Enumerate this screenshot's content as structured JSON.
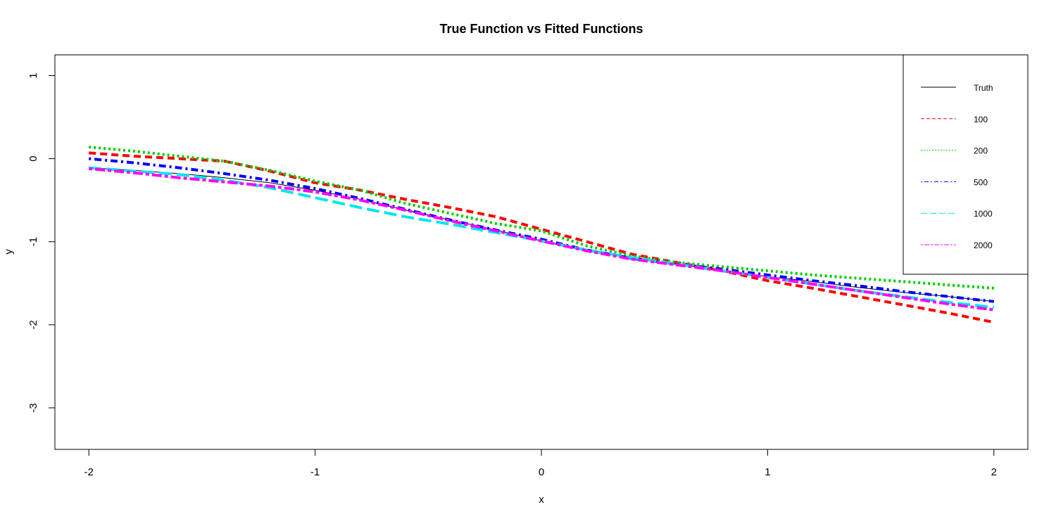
{
  "chart_data": {
    "type": "line",
    "title": "True Function vs Fitted Functions",
    "xlabel": "x",
    "ylabel": "y",
    "xlim": [
      -2.15,
      2.15
    ],
    "ylim": [
      -3.5,
      1.25
    ],
    "xticks": [
      -2,
      -1,
      0,
      1,
      2
    ],
    "xtick_labels": [
      "-2",
      "-1",
      "0",
      "1",
      "2"
    ],
    "yticks": [
      -3,
      -2,
      -1,
      0,
      1
    ],
    "ytick_labels": [
      "-3",
      "-2",
      "-1",
      "0",
      "1"
    ],
    "grid": false,
    "legend_position": "top-right",
    "x": [
      -2.0,
      -1.8,
      -1.6,
      -1.4,
      -1.2,
      -1.0,
      -0.8,
      -0.6,
      -0.4,
      -0.2,
      0.0,
      0.2,
      0.4,
      0.6,
      0.8,
      1.0,
      1.2,
      1.4,
      1.6,
      1.8,
      2.0
    ],
    "series": [
      {
        "name": "Truth",
        "color": "#000000",
        "dash": "solid",
        "values": [
          -0.11,
          -0.14,
          -0.18,
          -0.23,
          -0.29,
          -0.38,
          -0.49,
          -0.62,
          -0.74,
          -0.86,
          -0.99,
          -1.11,
          -1.2,
          -1.27,
          -1.34,
          -1.42,
          -1.48,
          -1.55,
          -1.61,
          -1.66,
          -1.72
        ]
      },
      {
        "name": "100",
        "color": "#ff0000",
        "dash": "dashed",
        "values": [
          0.07,
          0.03,
          0.0,
          -0.03,
          -0.15,
          -0.29,
          -0.38,
          -0.49,
          -0.59,
          -0.7,
          -0.85,
          -1.0,
          -1.15,
          -1.25,
          -1.35,
          -1.47,
          -1.56,
          -1.66,
          -1.76,
          -1.86,
          -1.97
        ]
      },
      {
        "name": "200",
        "color": "#00cd00",
        "dash": "dotted",
        "values": [
          0.14,
          0.09,
          0.03,
          -0.03,
          -0.14,
          -0.27,
          -0.38,
          -0.54,
          -0.66,
          -0.78,
          -0.87,
          -1.05,
          -1.17,
          -1.25,
          -1.3,
          -1.35,
          -1.4,
          -1.44,
          -1.48,
          -1.52,
          -1.56
        ]
      },
      {
        "name": "500",
        "color": "#0000ff",
        "dash": "dotdash",
        "values": [
          0.0,
          -0.05,
          -0.11,
          -0.18,
          -0.26,
          -0.36,
          -0.48,
          -0.61,
          -0.74,
          -0.86,
          -0.97,
          -1.1,
          -1.2,
          -1.27,
          -1.33,
          -1.4,
          -1.47,
          -1.53,
          -1.6,
          -1.66,
          -1.72
        ]
      },
      {
        "name": "1000",
        "color": "#00e5ee",
        "dash": "longdash",
        "values": [
          -0.11,
          -0.15,
          -0.19,
          -0.26,
          -0.35,
          -0.47,
          -0.59,
          -0.7,
          -0.79,
          -0.89,
          -0.99,
          -1.1,
          -1.19,
          -1.27,
          -1.35,
          -1.43,
          -1.51,
          -1.59,
          -1.66,
          -1.73,
          -1.79
        ]
      },
      {
        "name": "2000",
        "color": "#ff00ff",
        "dash": "twodash",
        "values": [
          -0.12,
          -0.17,
          -0.23,
          -0.28,
          -0.33,
          -0.4,
          -0.5,
          -0.62,
          -0.75,
          -0.87,
          -0.99,
          -1.11,
          -1.21,
          -1.28,
          -1.35,
          -1.43,
          -1.51,
          -1.59,
          -1.67,
          -1.75,
          -1.82
        ]
      }
    ]
  }
}
